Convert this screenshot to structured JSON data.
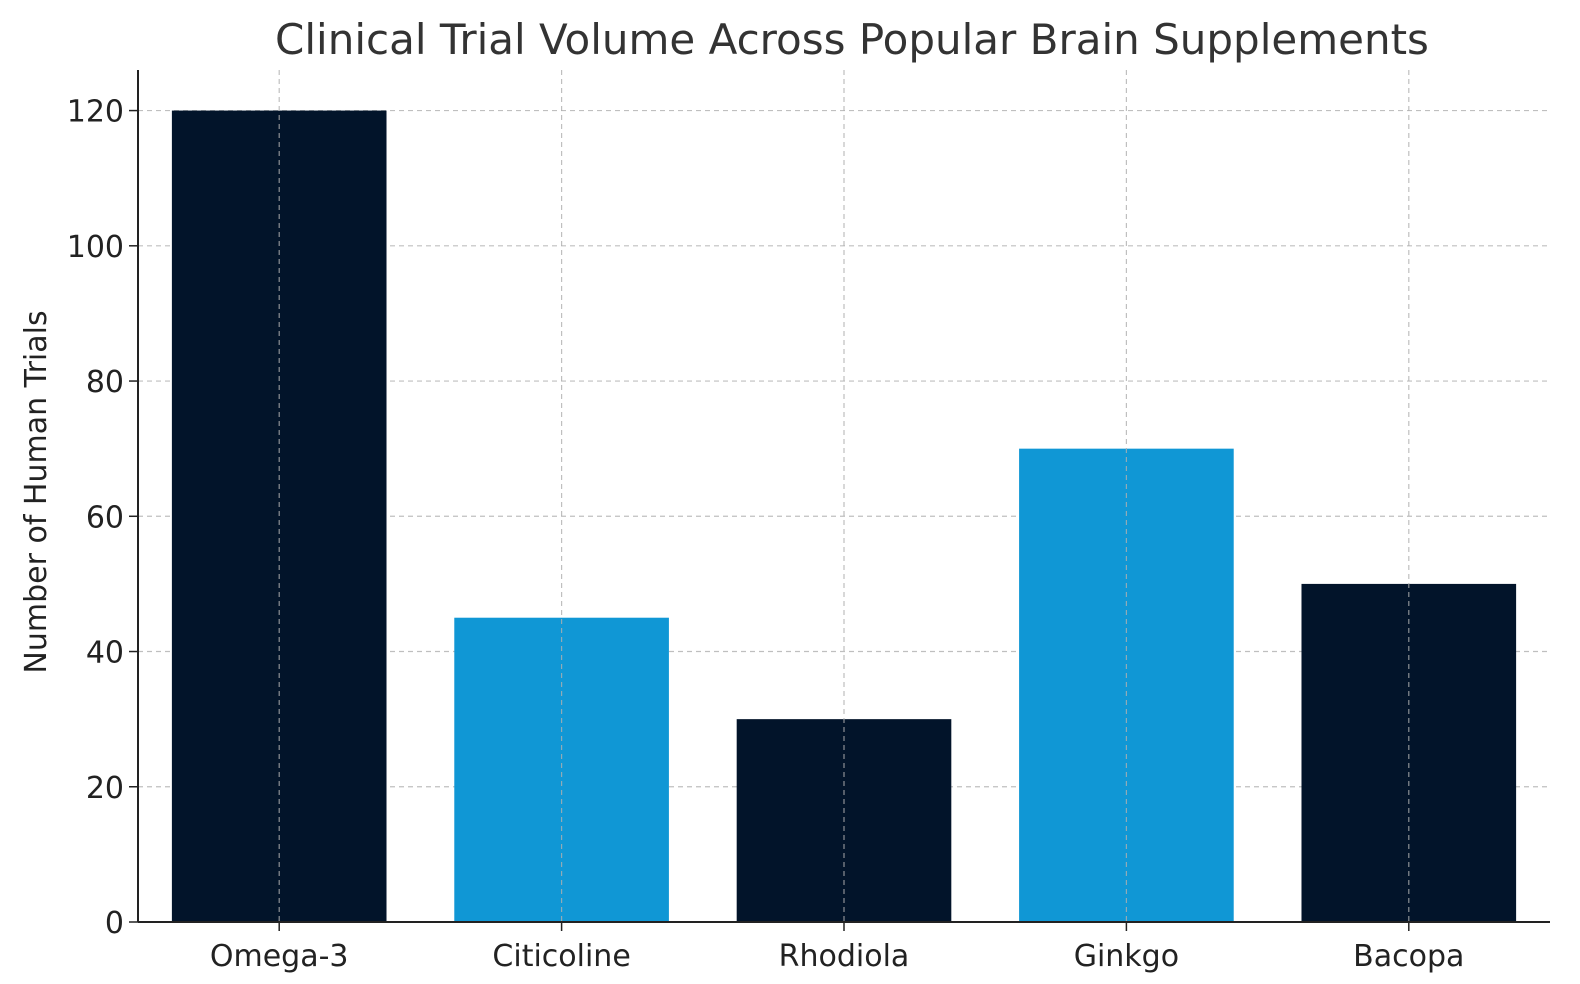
{
  "chart_data": {
    "type": "bar",
    "title": "Clinical Trial Volume Across Popular Brain Supplements",
    "xlabel": "",
    "ylabel": "Number of Human Trials",
    "categories": [
      "Omega-3",
      "Citicoline",
      "Rhodiola",
      "Ginkgo",
      "Bacopa"
    ],
    "values": [
      120,
      45,
      30,
      70,
      50
    ],
    "bar_colors": [
      "#02142a",
      "#1097d5",
      "#02142a",
      "#1097d5",
      "#02142a"
    ],
    "ylim": [
      0,
      126
    ],
    "yticks": [
      0,
      20,
      40,
      60,
      80,
      100,
      120
    ],
    "grid": true,
    "legend": "none"
  }
}
